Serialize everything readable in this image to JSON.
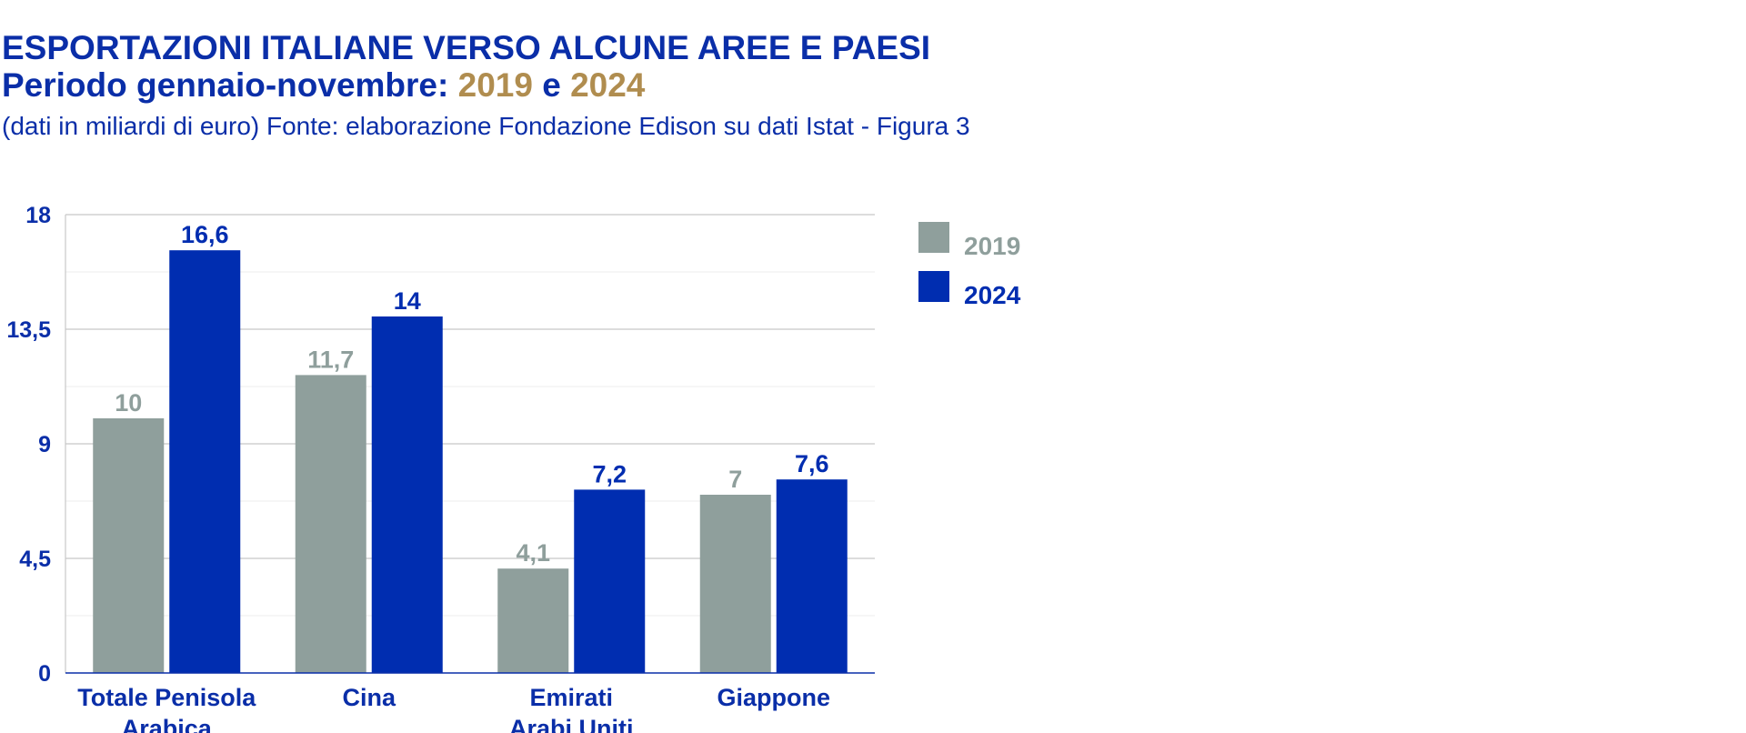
{
  "header": {
    "title_line1": "ESPORTAZIONI ITALIANE VERSO ALCUNE AREE E PAESI",
    "title_line2_prefix": "Periodo gennaio-novembre: ",
    "title_year1": "2019",
    "title_connector": " e ",
    "title_year2": "2024",
    "subtitle": "(dati in miliardi di euro) Fonte: elaborazione Fondazione Edison su dati Istat - Figura 3"
  },
  "colors": {
    "title": "#0a2ea8",
    "year_highlight": "#b08d4f",
    "series_2019": "#8f9f9c",
    "series_2024": "#002db0",
    "grid_major": "#c8c8c8",
    "grid_minor": "#ececec"
  },
  "legend": {
    "items": [
      {
        "label": "2019",
        "color": "#8f9f9c"
      },
      {
        "label": "2024",
        "color": "#002db0"
      }
    ]
  },
  "chart_data": {
    "type": "bar",
    "title": "ESPORTAZIONI ITALIANE VERSO ALCUNE AREE E PAESI",
    "subtitle": "Periodo gennaio-novembre: 2019 e 2024",
    "ylabel": "miliardi di euro",
    "xlabel": "",
    "ylim": [
      0,
      18
    ],
    "yticks": [
      0,
      4.5,
      9,
      13.5,
      18
    ],
    "ytick_labels": [
      "0",
      "4,5",
      "9",
      "13,5",
      "18"
    ],
    "grid": true,
    "legend_position": "top-right",
    "categories": [
      [
        "Totale Penisola",
        "Arabica"
      ],
      [
        "Cina"
      ],
      [
        "Emirati",
        "Arabi Uniti"
      ],
      [
        "Giappone"
      ]
    ],
    "series": [
      {
        "name": "2019",
        "values": [
          10,
          11.7,
          4.1,
          7
        ],
        "labels": [
          "10",
          "11,7",
          "4,1",
          "7"
        ]
      },
      {
        "name": "2024",
        "values": [
          16.6,
          14,
          7.2,
          7.6
        ],
        "labels": [
          "16,6",
          "14",
          "7,2",
          "7,6"
        ]
      }
    ]
  }
}
